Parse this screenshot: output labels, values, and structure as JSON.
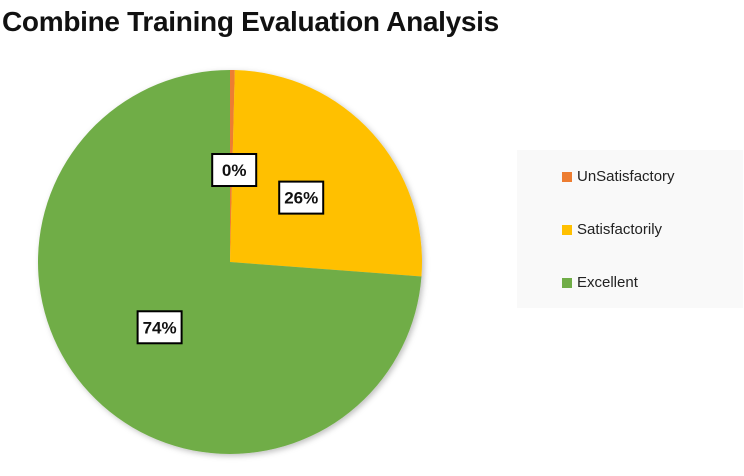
{
  "chart_data": {
    "type": "pie",
    "title": "Combine Training Evaluation Analysis",
    "slices": [
      {
        "name": "UnSatisfactory",
        "value": 0.4,
        "label": "0%",
        "color": "#ED7D31"
      },
      {
        "name": "Satisfactorily",
        "value": 25.8,
        "label": "26%",
        "color": "#FFC000"
      },
      {
        "name": "Excellent",
        "value": 73.8,
        "label": "74%",
        "color": "#70AD47"
      }
    ],
    "start_angle_deg": 0,
    "direction": "clockwise",
    "legend_position": "right"
  }
}
